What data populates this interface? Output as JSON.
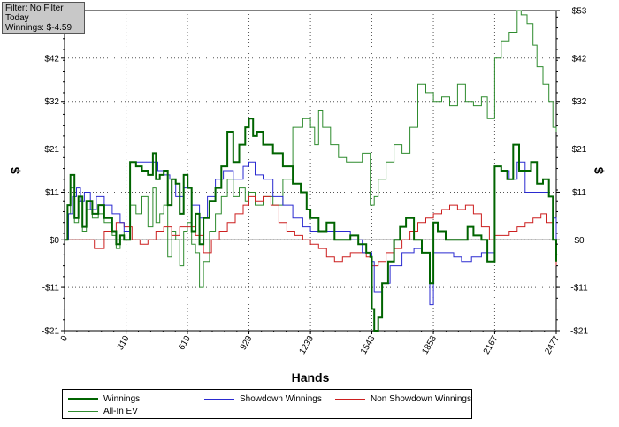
{
  "filter_box": {
    "line1": "Filter: No Filter",
    "line2": "Today",
    "line3": "Winnings: $-4.59"
  },
  "chart_data": {
    "type": "line",
    "title": "",
    "xlabel": "Hands",
    "ylabel": "$",
    "ylabel_right": "$",
    "xlim": [
      0,
      2477
    ],
    "ylim": [
      -21,
      53
    ],
    "x_ticks": [
      0,
      310,
      619,
      929,
      1239,
      1548,
      1858,
      2167,
      2477
    ],
    "y_ticks": [
      -21,
      -11,
      0,
      11,
      21,
      32,
      42,
      53
    ],
    "y_tick_labels": [
      "-$21",
      "-$11",
      "$0",
      "$11",
      "$21",
      "$32",
      "$42",
      "$53"
    ],
    "grid": true,
    "legend_position": "bottom",
    "series": [
      {
        "name": "Winnings",
        "color": "#006400",
        "x": [
          0,
          15,
          30,
          50,
          70,
          90,
          110,
          140,
          170,
          200,
          240,
          260,
          280,
          300,
          330,
          360,
          390,
          420,
          445,
          460,
          480,
          500,
          520,
          540,
          560,
          580,
          600,
          620,
          640,
          660,
          680,
          700,
          730,
          760,
          790,
          820,
          850,
          880,
          910,
          929,
          950,
          970,
          1000,
          1050,
          1100,
          1150,
          1190,
          1220,
          1239,
          1280,
          1320,
          1360,
          1400,
          1440,
          1480,
          1520,
          1540,
          1548,
          1560,
          1580,
          1600,
          1630,
          1660,
          1690,
          1720,
          1760,
          1800,
          1840,
          1858,
          1880,
          1920,
          1960,
          2000,
          2030,
          2060,
          2100,
          2130,
          2167,
          2200,
          2230,
          2260,
          2290,
          2320,
          2350,
          2380,
          2410,
          2440,
          2460,
          2477
        ],
        "y": [
          0,
          8,
          15,
          5,
          10,
          3,
          9,
          6,
          8,
          5,
          2,
          -1,
          1,
          0,
          18,
          17,
          16,
          15,
          20,
          14,
          15,
          16,
          8,
          14,
          13,
          6,
          15,
          12,
          2,
          6,
          -1,
          5,
          9,
          12,
          17,
          25,
          18,
          22,
          26,
          28,
          24,
          25,
          22,
          20,
          17,
          13,
          11,
          7,
          5,
          2,
          4,
          0,
          0,
          1,
          -1,
          -3,
          -4,
          -16,
          -21,
          -18,
          -10,
          -5,
          0,
          3,
          5,
          0,
          -3,
          -10,
          4,
          2,
          0,
          0,
          0,
          3,
          1,
          0,
          -5,
          17,
          16,
          14,
          22,
          16,
          16,
          18,
          13,
          14,
          10,
          0,
          -5
        ]
      },
      {
        "name": "Showdown Winnings",
        "color": "#2a2ad0",
        "x": [
          0,
          20,
          40,
          60,
          80,
          100,
          130,
          160,
          200,
          240,
          280,
          300,
          330,
          380,
          440,
          470,
          500,
          530,
          560,
          600,
          640,
          680,
          720,
          760,
          800,
          850,
          900,
          929,
          960,
          1000,
          1050,
          1100,
          1150,
          1200,
          1239,
          1280,
          1320,
          1380,
          1440,
          1500,
          1548,
          1560,
          1600,
          1640,
          1700,
          1760,
          1800,
          1840,
          1858,
          1900,
          1960,
          2000,
          2050,
          2100,
          2130,
          2167,
          2200,
          2240,
          2280,
          2320,
          2360,
          2400,
          2440,
          2460,
          2477
        ],
        "y": [
          0,
          6,
          10,
          12,
          9,
          11,
          7,
          10,
          8,
          6,
          4,
          2,
          18,
          18,
          18,
          16,
          15,
          14,
          10,
          12,
          8,
          5,
          10,
          14,
          16,
          14,
          17,
          18,
          15,
          14,
          10,
          8,
          5,
          3,
          2,
          2,
          2,
          2,
          0,
          -3,
          -5,
          -12,
          -10,
          -6,
          -3,
          -2,
          -3,
          -15,
          -3,
          -3,
          -4,
          -5,
          -4,
          -3,
          -3,
          17,
          16,
          14,
          18,
          11,
          11,
          11,
          10,
          5,
          0
        ]
      },
      {
        "name": "Non Showdown Winnings",
        "color": "#cc1f1f",
        "x": [
          0,
          50,
          100,
          150,
          200,
          260,
          300,
          340,
          380,
          420,
          460,
          500,
          540,
          580,
          619,
          660,
          700,
          740,
          780,
          820,
          860,
          900,
          929,
          960,
          1000,
          1040,
          1080,
          1120,
          1160,
          1200,
          1239,
          1280,
          1320,
          1360,
          1400,
          1440,
          1480,
          1520,
          1548,
          1580,
          1620,
          1660,
          1700,
          1740,
          1780,
          1820,
          1858,
          1900,
          1940,
          1980,
          2020,
          2060,
          2100,
          2140,
          2167,
          2200,
          2240,
          2280,
          2320,
          2360,
          2400,
          2430,
          2460,
          2477
        ],
        "y": [
          0,
          0,
          0,
          -2,
          2,
          4,
          3,
          0,
          -1,
          0,
          2,
          3,
          1,
          3,
          3,
          1,
          -3,
          0,
          2,
          4,
          6,
          8,
          10,
          9,
          10,
          8,
          4,
          2,
          1,
          0,
          -1,
          -2,
          -4,
          -5,
          -4,
          -3,
          -3,
          -4,
          -6,
          -5,
          -3,
          -2,
          0,
          2,
          4,
          5,
          6,
          7,
          8,
          7,
          8,
          6,
          3,
          0,
          1,
          1,
          2,
          3,
          4,
          5,
          6,
          4,
          0,
          -6
        ]
      },
      {
        "name": "All-In EV",
        "color": "#2e8b2e",
        "x": [
          0,
          15,
          30,
          50,
          70,
          90,
          110,
          140,
          170,
          200,
          240,
          260,
          280,
          300,
          330,
          360,
          390,
          420,
          445,
          460,
          480,
          500,
          520,
          540,
          560,
          580,
          600,
          619,
          640,
          660,
          680,
          700,
          730,
          760,
          790,
          820,
          850,
          880,
          910,
          929,
          960,
          1000,
          1050,
          1100,
          1150,
          1200,
          1239,
          1260,
          1280,
          1300,
          1340,
          1380,
          1420,
          1460,
          1500,
          1540,
          1560,
          1580,
          1620,
          1660,
          1700,
          1740,
          1780,
          1820,
          1858,
          1900,
          1940,
          1980,
          2020,
          2060,
          2100,
          2130,
          2167,
          2200,
          2240,
          2280,
          2300,
          2330,
          2360,
          2380,
          2410,
          2440,
          2460,
          2477
        ],
        "y": [
          0,
          6,
          12,
          4,
          9,
          2,
          7,
          5,
          6,
          4,
          1,
          -2,
          0,
          2,
          8,
          6,
          10,
          3,
          12,
          4,
          6,
          8,
          -4,
          2,
          0,
          -6,
          2,
          4,
          -1,
          -3,
          -11,
          -5,
          2,
          6,
          10,
          14,
          10,
          12,
          9,
          11,
          8,
          10,
          8,
          14,
          26,
          28,
          26,
          22,
          30,
          26,
          22,
          19,
          18,
          18,
          20,
          8,
          10,
          14,
          18,
          22,
          20,
          26,
          36,
          34,
          32,
          33,
          31,
          36,
          32,
          31,
          33,
          28,
          42,
          46,
          48,
          53,
          52,
          50,
          45,
          40,
          36,
          32,
          26,
          25
        ]
      }
    ]
  }
}
